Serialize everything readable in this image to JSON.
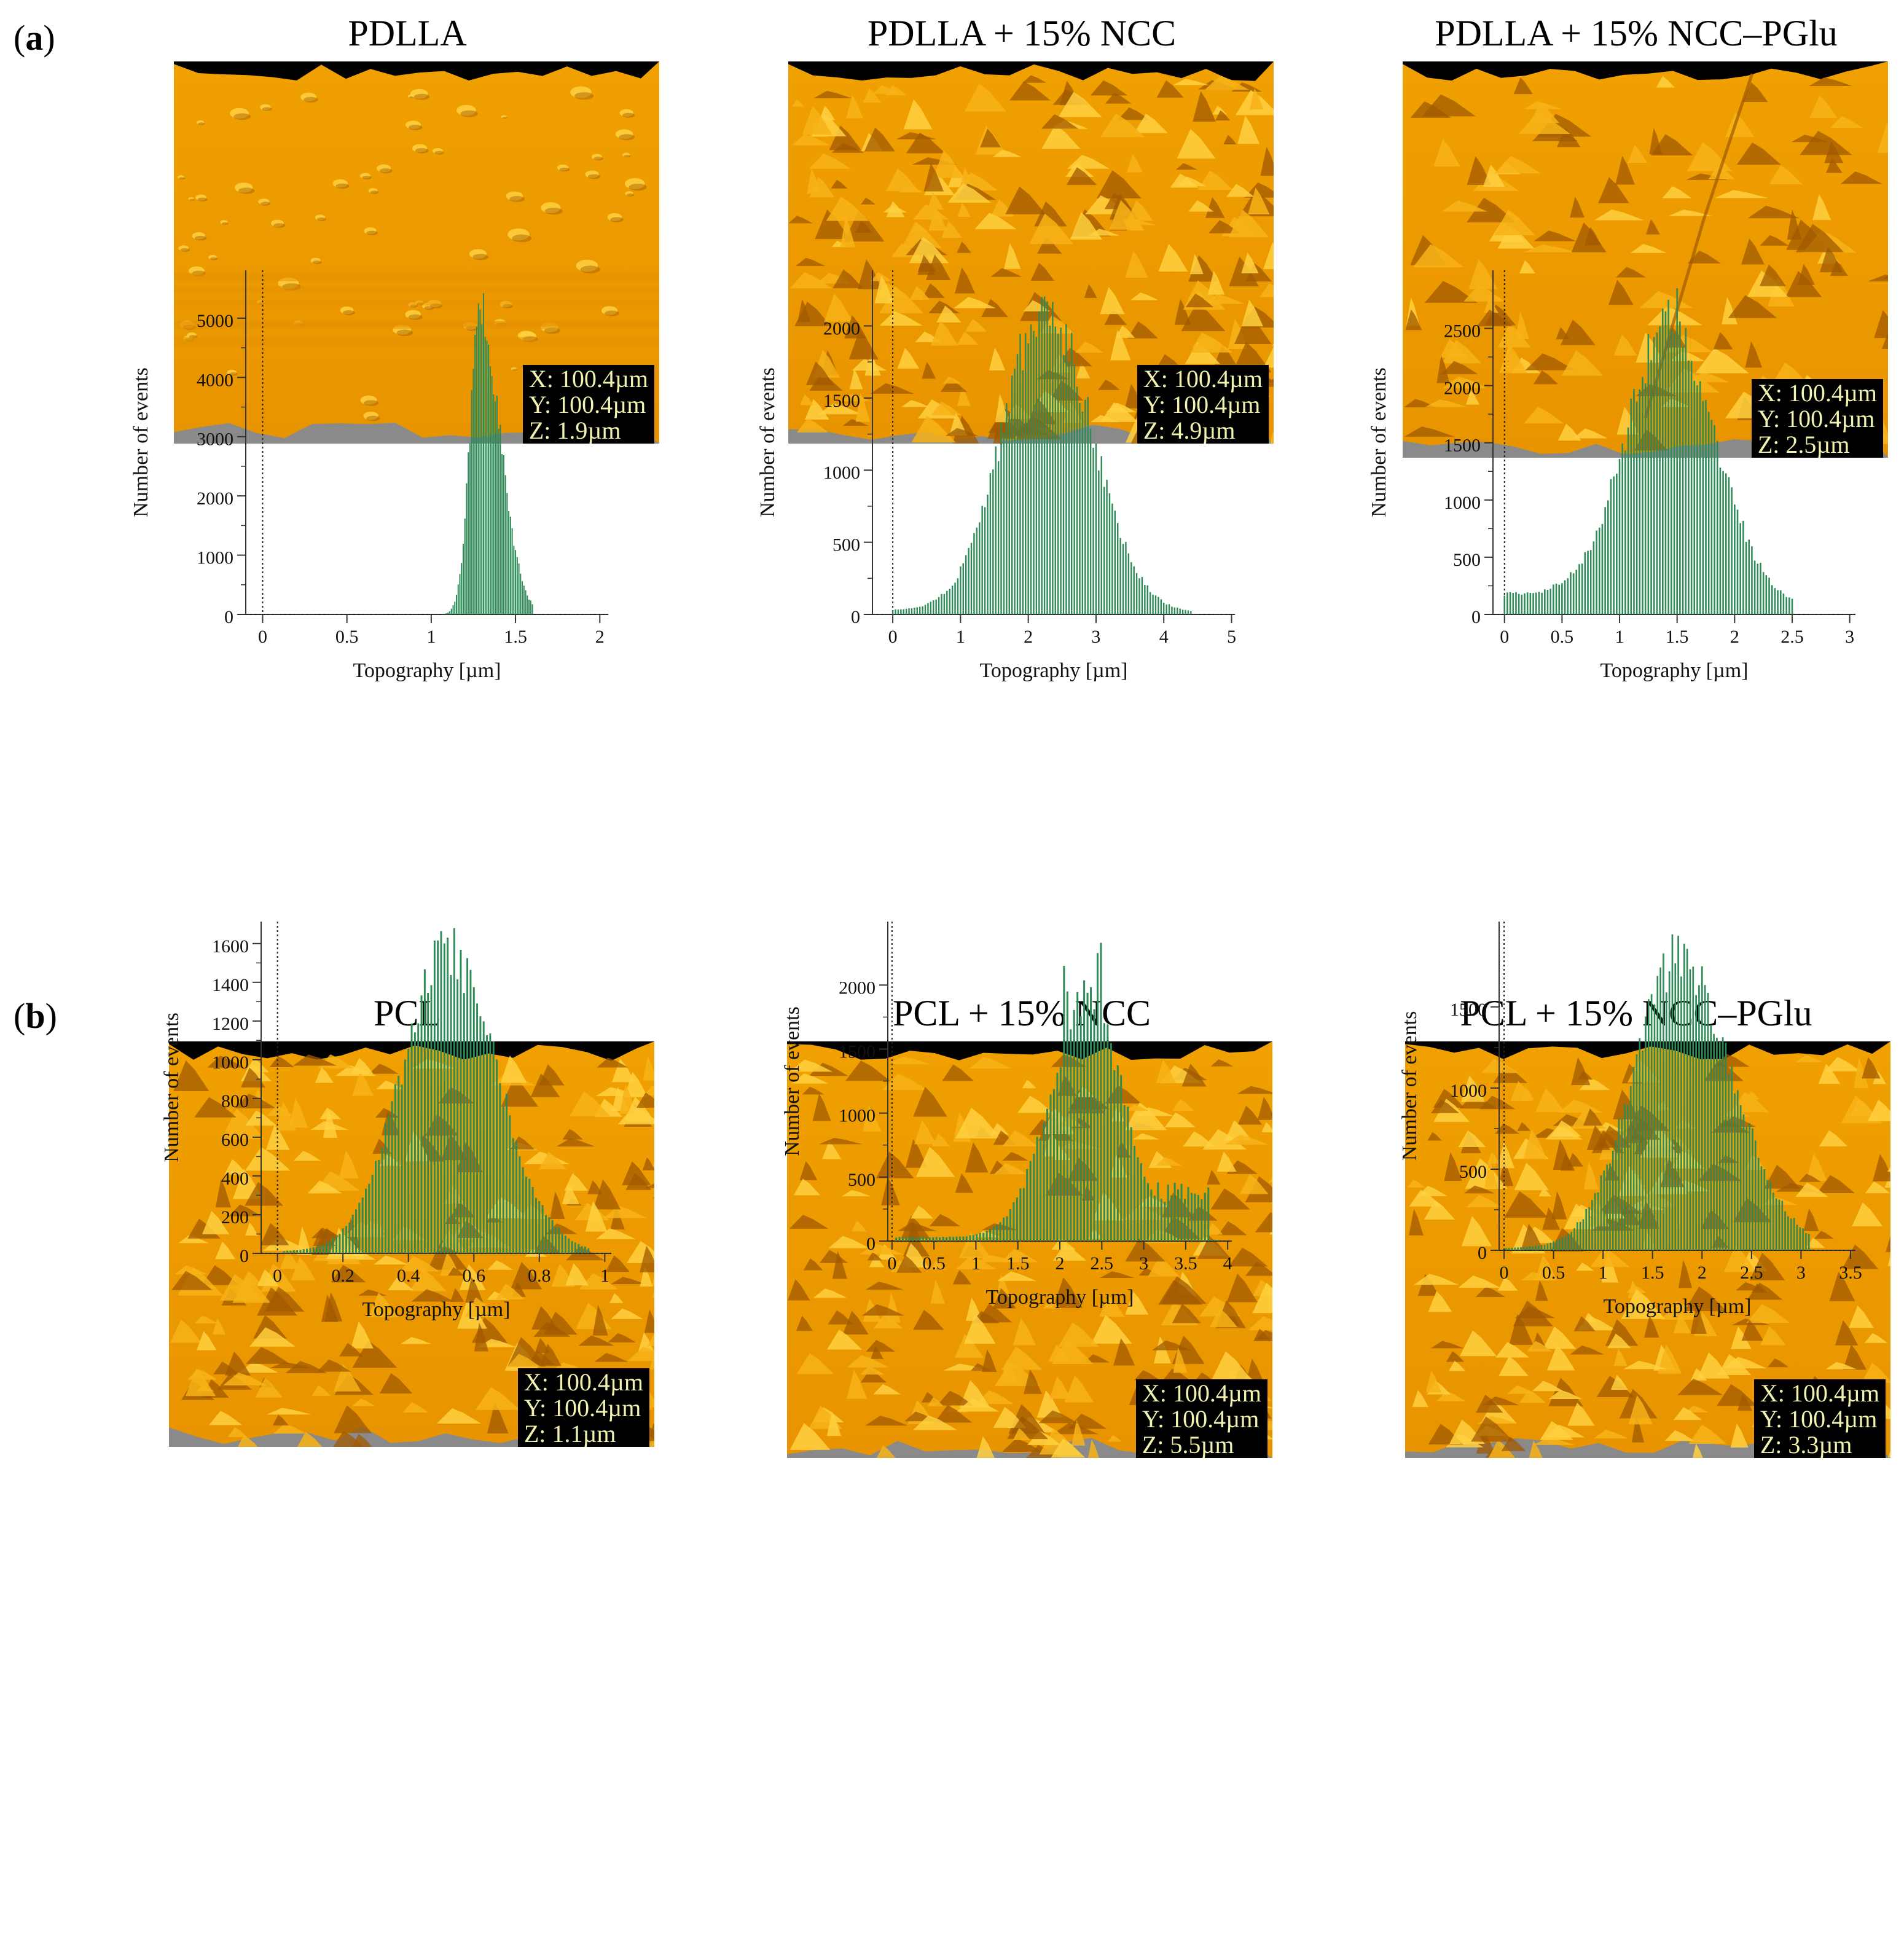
{
  "panels": [
    {
      "label_letter": "a",
      "label": "(a)"
    },
    {
      "label_letter": "b",
      "label": "(b)"
    }
  ],
  "samples": [
    {
      "title": "PDLLA",
      "scale": {
        "x": "X: 100.4µm",
        "y": "Y: 100.4µm",
        "z": "Z: 1.9µm"
      },
      "texture": "smooth"
    },
    {
      "title": "PDLLA + 15% NCC",
      "scale": {
        "x": "X: 100.4µm",
        "y": "Y: 100.4µm",
        "z": "Z: 4.9µm"
      },
      "texture": "rough"
    },
    {
      "title": "PDLLA + 15% NCC–PGlu",
      "scale": {
        "x": "X: 100.4µm",
        "y": "Y: 100.4µm",
        "z": "Z: 2.5µm"
      },
      "texture": "medium"
    },
    {
      "title": "PCL",
      "scale": {
        "x": "X: 100.4µm",
        "y": "Y: 100.4µm",
        "z": "Z: 1.1µm"
      },
      "texture": "rough"
    },
    {
      "title": "PCL + 15% NCC",
      "scale": {
        "x": "X: 100.4µm",
        "y": "Y: 100.4µm",
        "z": "Z: 5.5µm"
      },
      "texture": "rough"
    },
    {
      "title": "PCL + 15% NCC–PGlu",
      "scale": {
        "x": "X: 100.4µm",
        "y": "Y: 100.4µm",
        "z": "Z: 3.3µm"
      },
      "texture": "rough"
    }
  ],
  "colors": {
    "surface_base": "#f0a000",
    "surface_light": "#ffd040",
    "surface_dark": "#a05a00",
    "bars": "#2e8b57",
    "gray": "#8a8a8a"
  },
  "chart_data": [
    {
      "type": "bar",
      "title": "PDLLA",
      "xlabel": "Topography [µm]",
      "ylabel": "Number of events",
      "xlim": [
        -0.1,
        2.05
      ],
      "ylim": [
        0,
        5600
      ],
      "xticks": [
        0,
        0.5,
        1,
        1.5,
        2
      ],
      "xtick_labels": [
        "0",
        "0.5",
        "1",
        "1.5",
        "2"
      ],
      "yticks": [
        0,
        1000,
        2000,
        3000,
        4000,
        5000
      ],
      "ytick_labels": [
        "0",
        "1000",
        "2000",
        "3000",
        "4000",
        "5000"
      ],
      "dist": {
        "x0": 1.0,
        "x1": 1.6,
        "step": 0.01,
        "mu": 1.29,
        "sl": 0.06,
        "sr": 0.12,
        "peak": 5100,
        "tail": 0,
        "spikes": [
          [
            1.28,
            5250
          ],
          [
            1.29,
            5150
          ],
          [
            1.3,
            4900
          ]
        ]
      }
    },
    {
      "type": "bar",
      "title": "PDLLA + 15% NCC",
      "xlabel": "Topography [µm]",
      "ylabel": "Number of events",
      "xlim": [
        -0.3,
        5.05
      ],
      "ylim": [
        0,
        2300
      ],
      "xticks": [
        0,
        1,
        2,
        3,
        4,
        5
      ],
      "xtick_labels": [
        "0",
        "1",
        "2",
        "3",
        "4",
        "5"
      ],
      "yticks": [
        0,
        500,
        1000,
        1500,
        2000
      ],
      "ytick_labels": [
        "0",
        "500",
        "1000",
        "1500",
        "2000"
      ],
      "dist": {
        "x0": 0.0,
        "x1": 4.4,
        "step": 0.04,
        "mu": 2.25,
        "sl": 0.62,
        "sr": 0.68,
        "peak": 2130,
        "tail": 30,
        "spikes": [
          [
            2.2,
            2200
          ],
          [
            2.3,
            2170
          ]
        ]
      }
    },
    {
      "type": "bar",
      "title": "PDLLA + 15% NCC–PGlu",
      "xlabel": "Topography [µm]",
      "ylabel": "Number of events",
      "xlim": [
        -0.1,
        3.05
      ],
      "ylim": [
        0,
        2900
      ],
      "xticks": [
        0,
        0.5,
        1,
        1.5,
        2,
        2.5,
        3
      ],
      "xtick_labels": [
        "0",
        "0.5",
        "1",
        "1.5",
        "2",
        "2.5",
        "3"
      ],
      "yticks": [
        0,
        500,
        1000,
        1500,
        2000,
        2500
      ],
      "ytick_labels": [
        "0",
        "500",
        "1000",
        "1500",
        "2000",
        "2500"
      ],
      "dist": {
        "x0": 0.0,
        "x1": 2.5,
        "step": 0.025,
        "mu": 1.45,
        "sl": 0.38,
        "sr": 0.4,
        "peak": 2400,
        "tail": 180,
        "spikes": [
          [
            1.5,
            2850
          ],
          [
            1.45,
            2500
          ]
        ]
      }
    },
    {
      "type": "bar",
      "title": "PCL",
      "xlabel": "Topography [µm]",
      "ylabel": "Number of events",
      "xlim": [
        -0.05,
        1.02
      ],
      "ylim": [
        0,
        1650
      ],
      "xticks": [
        0,
        0.2,
        0.4,
        0.6,
        0.8,
        1
      ],
      "xtick_labels": [
        "0",
        "0.2",
        "0.4",
        "0.6",
        "0.8",
        "1"
      ],
      "yticks": [
        0,
        200,
        400,
        600,
        800,
        1000,
        1200,
        1400,
        1600
      ],
      "ytick_labels": [
        "0",
        "200",
        "400",
        "600",
        "800",
        "1000",
        "1200",
        "1400",
        "1600"
      ],
      "dist": {
        "x0": 0.02,
        "x1": 0.95,
        "step": 0.01,
        "mu": 0.52,
        "sl": 0.14,
        "sr": 0.15,
        "peak": 1570,
        "tail": 10,
        "spikes": []
      }
    },
    {
      "type": "bar",
      "title": "PCL + 15% NCC",
      "xlabel": "Topography [µm]",
      "ylabel": "Number of events",
      "xlim": [
        -0.05,
        4.05
      ],
      "ylim": [
        0,
        2400
      ],
      "xticks": [
        0,
        0.5,
        1,
        1.5,
        2,
        2.5,
        3,
        3.5,
        4
      ],
      "xtick_labels": [
        "0",
        "0.5",
        "1",
        "1.5",
        "2",
        "2.5",
        "3",
        "3.5",
        "4"
      ],
      "yticks": [
        0,
        500,
        1000,
        1500,
        2000
      ],
      "ytick_labels": [
        "0",
        "500",
        "1000",
        "1500",
        "2000"
      ],
      "dist": {
        "x0": 0.05,
        "x1": 3.9,
        "step": 0.04,
        "mu": 2.35,
        "sl": 0.45,
        "sr": 0.4,
        "peak": 1900,
        "tail": 30,
        "spikes": [
          [
            2.5,
            2330
          ],
          [
            2.45,
            2250
          ],
          [
            2.05,
            2150
          ],
          [
            2.1,
            1950
          ]
        ],
        "plateau": [
          2.9,
          3.8,
          380
        ]
      }
    },
    {
      "type": "bar",
      "title": "PCL + 15% NCC–PGlu",
      "xlabel": "Topography [µm]",
      "ylabel": "Number of events",
      "xlim": [
        -0.05,
        3.55
      ],
      "ylim": [
        0,
        1950
      ],
      "xticks": [
        0,
        0.5,
        1,
        1.5,
        2,
        2.5,
        3,
        3.5
      ],
      "xtick_labels": [
        "0",
        "0.5",
        "1",
        "1.5",
        "2",
        "2.5",
        "3",
        "3.5"
      ],
      "yticks": [
        0,
        500,
        1000,
        1500
      ],
      "ytick_labels": [
        "0",
        "500",
        "1000",
        "1500"
      ],
      "dist": {
        "x0": 0.02,
        "x1": 3.1,
        "step": 0.03,
        "mu": 1.75,
        "sl": 0.45,
        "sr": 0.55,
        "peak": 1800,
        "tail": 15,
        "spikes": [
          [
            1.82,
            1890
          ],
          [
            1.6,
            1830
          ]
        ]
      }
    }
  ]
}
